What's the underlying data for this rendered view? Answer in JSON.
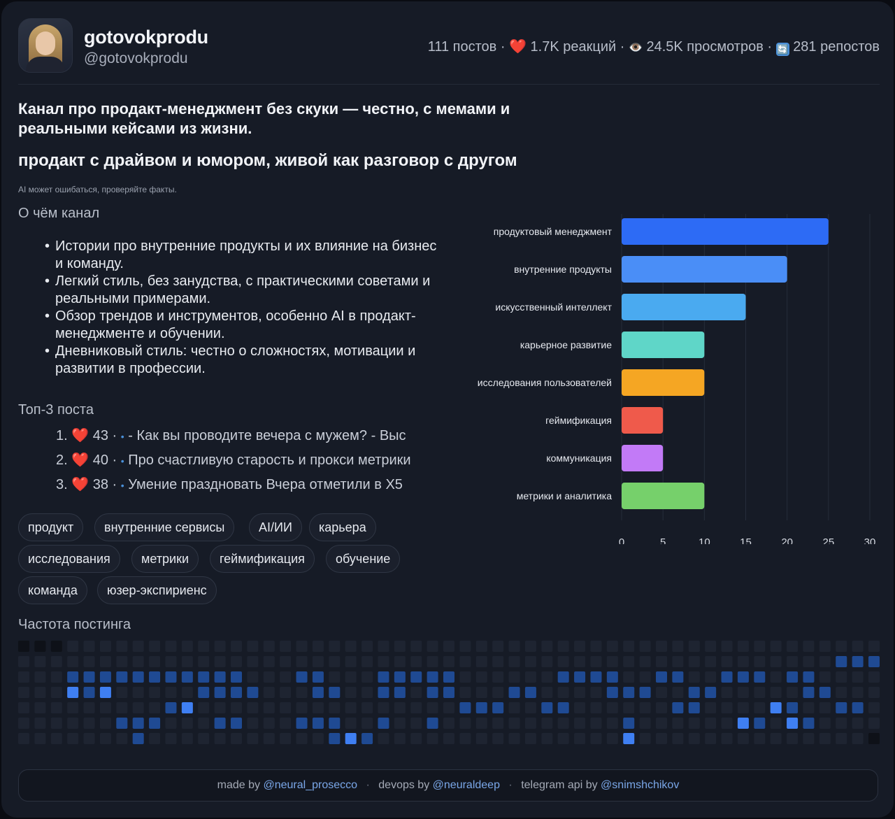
{
  "channel": {
    "name": "gotovokprodu",
    "handle": "@gotovokprodu"
  },
  "stats": {
    "posts": "111 постов",
    "reactions": "1.7K реакций",
    "views": "24.5K просмотров",
    "reposts": "281 репостов",
    "separator": "·",
    "heart_icon": "❤️",
    "eye_icon": "👁️",
    "repost_icon": "🔄"
  },
  "description": "Канал про продакт-менеджмент без скуки — честно, с мемами и реальными кейсами из жизни.",
  "slogan": "продакт с драйвом и юмором, живой как разговор с другом",
  "disclaimer": "AI может ошибаться, проверяйте факты.",
  "about": {
    "title": "О чём канал",
    "items": [
      "Истории про внутренние продукты и их влияние на бизнес и команду.",
      "Легкий стиль, без занудства, с практическими советами и реальными примерами.",
      "Обзор трендов и инструментов, особенно AI в продакт-менеджменте и обучении.",
      "Дневниковый стиль: честно о сложностях, мотивации и развитии в профессии."
    ]
  },
  "top_posts": {
    "title": "Топ-3 поста",
    "items": [
      {
        "rank": "1.",
        "reactions": "43",
        "text": "- Как вы проводите вечера с мужем? - Выс"
      },
      {
        "rank": "2.",
        "reactions": "40",
        "text": "Про счастливую старость и прокси метрики"
      },
      {
        "rank": "3.",
        "reactions": "38",
        "text": "Умение праздновать Вчера отметили в Х5"
      }
    ]
  },
  "tags": [
    "продукт",
    "внутренние сервисы",
    "AI/ИИ",
    "карьера",
    "исследования",
    "метрики",
    "геймификация",
    "обучение",
    "команда",
    "юзер-экспириенс"
  ],
  "chart_data": {
    "type": "bar",
    "orientation": "horizontal",
    "categories": [
      "продуктовый менеджмент",
      "внутренние продукты",
      "искусственный интеллект",
      "карьерное развитие",
      "исследования пользователей",
      "геймификация",
      "коммуникация",
      "метрики и аналитика"
    ],
    "values": [
      25,
      20,
      15,
      10,
      10,
      5,
      5,
      10
    ],
    "colors": [
      "#2d6bf5",
      "#4a8ef7",
      "#4aaaf0",
      "#5fd6c8",
      "#f5a623",
      "#ef5a4b",
      "#c27af7",
      "#76d06b"
    ],
    "xlim": [
      0,
      30
    ],
    "xticks": [
      0,
      5,
      10,
      15,
      20,
      25,
      30
    ],
    "grid": true
  },
  "frequency": {
    "title": "Частота постинга",
    "rows": [
      "DDDeeeeeeeeeeeeeeeeeeeeeeeeeeeeeeeeeeeeeeeeeeeeeeeeeeeee",
      "eeeeeeeeeeeeeeeeeeeeeeeeeeeeeeeeeeeeeeeeeeeeeeeeeellleee",
      "eeellllllllllleeelleeellllleeeeeelllleelleelllelleeeelll",
      "eeeHlHeeeeelllleeelleellelleeelleeeellleelleeeeelleeeeee",
      "eeeeeeeeelHeeeeeeeeeeeeeeeellleelleeeeeelleeeeHleelleeee",
      "eeeeeellleeelleeellleeleeleeeeeeeeeeeleeeeeeHleHleeeeeee",
      "eeeeeeeleeeeeeeeeeelHleeeeeeeeeeeeeeeHeeeeeeeeeeeeeeDDDD"
    ],
    "colors": {
      "empty": "#1e2431",
      "dark": "#0e1118",
      "low": "#1f4a93",
      "high": "#3f7ff2"
    }
  },
  "footer": {
    "made_by_label": "made by",
    "made_by_link": "@neural_prosecco",
    "devops_label": "devops by",
    "devops_link": "@neuraldeep",
    "api_label": "telegram api by",
    "api_link": "@snimshchikov",
    "separator": "·"
  }
}
